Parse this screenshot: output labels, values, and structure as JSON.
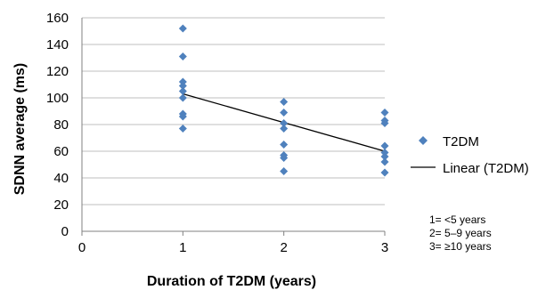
{
  "chart_data": {
    "type": "scatter",
    "xlabel": "Duration of T2DM (years)",
    "ylabel": "SDNN average (ms)",
    "xlim": [
      0,
      3
    ],
    "ylim": [
      0,
      160
    ],
    "xticks": [
      0,
      1,
      2,
      3
    ],
    "yticks": [
      0,
      20,
      40,
      60,
      80,
      100,
      120,
      140,
      160
    ],
    "grid": "horizontal",
    "legend_position": "right",
    "series": [
      {
        "name": "T2DM",
        "color": "#4F81BD",
        "marker": "diamond",
        "points": [
          [
            1,
            152
          ],
          [
            1,
            131
          ],
          [
            1,
            112
          ],
          [
            1,
            109
          ],
          [
            1,
            105
          ],
          [
            1,
            100
          ],
          [
            1,
            88
          ],
          [
            1,
            86
          ],
          [
            1,
            77
          ],
          [
            2,
            97
          ],
          [
            2,
            89
          ],
          [
            2,
            81
          ],
          [
            2,
            77
          ],
          [
            2,
            65
          ],
          [
            2,
            57
          ],
          [
            2,
            55
          ],
          [
            2,
            45
          ],
          [
            3,
            89
          ],
          [
            3,
            83
          ],
          [
            3,
            81
          ],
          [
            3,
            64
          ],
          [
            3,
            59
          ],
          [
            3,
            56
          ],
          [
            3,
            52
          ],
          [
            3,
            44
          ]
        ]
      },
      {
        "name": "Linear (T2DM)",
        "color": "#000000",
        "type": "line",
        "points": [
          [
            1,
            103
          ],
          [
            3,
            60
          ]
        ]
      }
    ],
    "notes": [
      "1= <5 years",
      "2= 5–9 years",
      "3= ≥10 years"
    ]
  }
}
